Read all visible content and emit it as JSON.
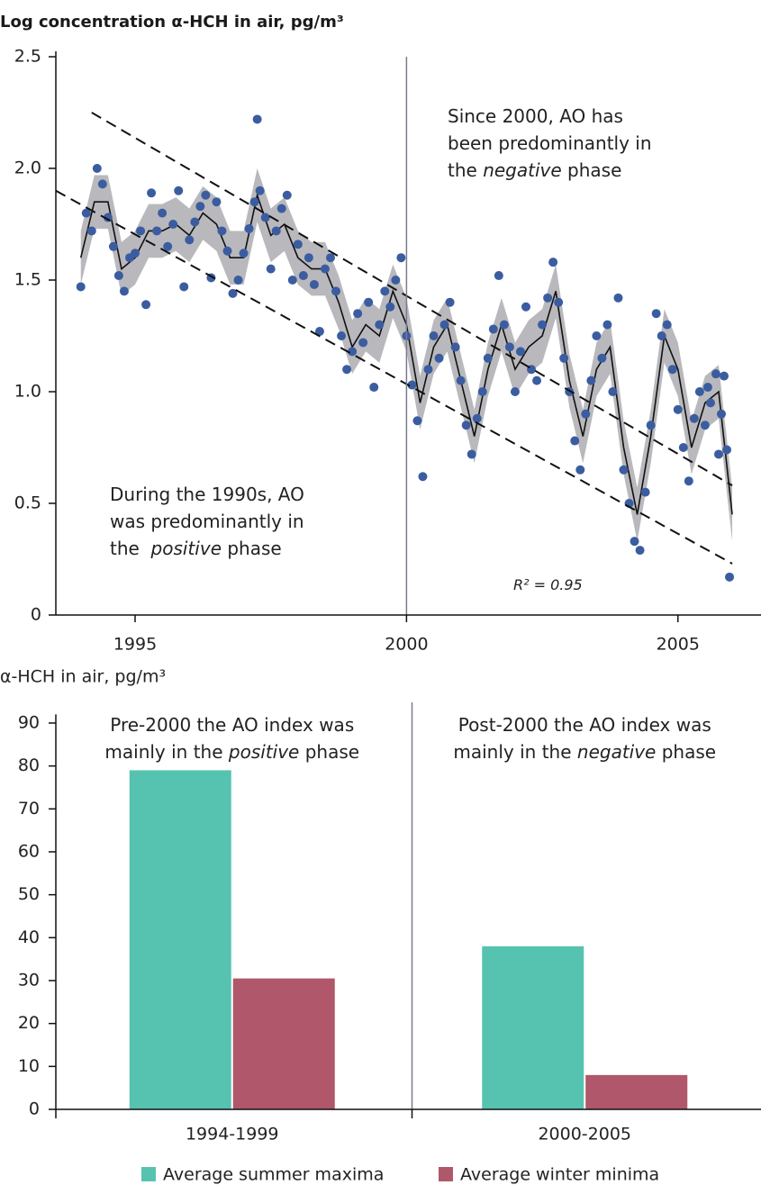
{
  "chart_data": [
    {
      "type": "scatter",
      "title": "Log concentration α-HCH in air, pg/m³",
      "xlim": [
        1993.54,
        2006.53
      ],
      "ylim": [
        0,
        2.5
      ],
      "xticks": [
        1995,
        2000,
        2005
      ],
      "yticks": [
        0,
        0.5,
        {
          "value": 1,
          "label": "1.0"
        },
        1.5,
        {
          "value": 2,
          "label": "2.0"
        },
        2.5
      ],
      "vline": 2000,
      "series": [
        {
          "type": "line",
          "color": "#111111",
          "band_color": "#b9b9bd",
          "x": [
            1994,
            1994.25,
            1994.5,
            1994.75,
            1995,
            1995.25,
            1995.5,
            1995.75,
            1996,
            1996.25,
            1996.5,
            1996.75,
            1997,
            1997.25,
            1997.5,
            1997.75,
            1998,
            1998.25,
            1998.5,
            1998.75,
            1999,
            1999.25,
            1999.5,
            1999.75,
            2000,
            2000.25,
            2000.5,
            2000.75,
            2001,
            2001.25,
            2001.5,
            2001.75,
            2002,
            2002.25,
            2002.5,
            2002.75,
            2003,
            2003.25,
            2003.5,
            2003.75,
            2004,
            2004.25,
            2004.5,
            2004.75,
            2005,
            2005.25,
            2005.5,
            2005.75,
            2006
          ],
          "values": [
            1.6,
            1.85,
            1.85,
            1.55,
            1.6,
            1.72,
            1.72,
            1.75,
            1.7,
            1.8,
            1.75,
            1.6,
            1.6,
            1.88,
            1.7,
            1.75,
            1.6,
            1.55,
            1.55,
            1.4,
            1.2,
            1.3,
            1.25,
            1.45,
            1.3,
            0.95,
            1.2,
            1.3,
            1.05,
            0.8,
            1.1,
            1.3,
            1.1,
            1.2,
            1.25,
            1.45,
            1.05,
            0.8,
            1.1,
            1.2,
            0.75,
            0.45,
            0.8,
            1.25,
            1.1,
            0.75,
            0.95,
            1.0,
            0.45
          ],
          "upper": [
            1.72,
            1.97,
            1.97,
            1.67,
            1.72,
            1.84,
            1.84,
            1.87,
            1.82,
            1.92,
            1.87,
            1.72,
            1.72,
            2.0,
            1.82,
            1.87,
            1.72,
            1.67,
            1.67,
            1.52,
            1.32,
            1.42,
            1.37,
            1.57,
            1.42,
            1.07,
            1.32,
            1.42,
            1.17,
            0.92,
            1.22,
            1.42,
            1.22,
            1.32,
            1.37,
            1.57,
            1.17,
            0.92,
            1.22,
            1.32,
            0.87,
            0.57,
            0.92,
            1.37,
            1.22,
            0.87,
            1.07,
            1.12,
            0.57
          ],
          "lower": [
            1.48,
            1.73,
            1.73,
            1.43,
            1.48,
            1.6,
            1.6,
            1.63,
            1.58,
            1.68,
            1.63,
            1.48,
            1.48,
            1.76,
            1.58,
            1.63,
            1.48,
            1.43,
            1.43,
            1.28,
            1.08,
            1.18,
            1.13,
            1.33,
            1.18,
            0.83,
            1.08,
            1.18,
            0.93,
            0.68,
            0.98,
            1.18,
            0.98,
            1.08,
            1.13,
            1.33,
            0.93,
            0.68,
            0.98,
            1.08,
            0.63,
            0.33,
            0.68,
            1.13,
            0.98,
            0.63,
            0.83,
            0.88,
            0.33
          ]
        },
        {
          "type": "scatter",
          "color": "#3b5da0",
          "x": [
            1994,
            1994.1,
            1994.2,
            1994.3,
            1994.4,
            1994.5,
            1994.6,
            1994.7,
            1994.8,
            1994.9,
            1995,
            1995.1,
            1995.2,
            1995.3,
            1995.4,
            1995.5,
            1995.6,
            1995.7,
            1995.8,
            1995.9,
            1996,
            1996.1,
            1996.2,
            1996.3,
            1996.4,
            1996.5,
            1996.6,
            1996.7,
            1996.8,
            1996.9,
            1997,
            1997.1,
            1997.2,
            1997.25,
            1997.3,
            1997.4,
            1997.5,
            1997.6,
            1997.7,
            1997.8,
            1997.9,
            1998,
            1998.1,
            1998.2,
            1998.3,
            1998.4,
            1998.5,
            1998.6,
            1998.7,
            1998.8,
            1998.9,
            1999,
            1999.1,
            1999.2,
            1999.3,
            1999.4,
            1999.5,
            1999.6,
            1999.7,
            1999.8,
            1999.9,
            2000,
            2000.1,
            2000.2,
            2000.3,
            2000.4,
            2000.5,
            2000.6,
            2000.7,
            2000.8,
            2000.9,
            2001,
            2001.1,
            2001.2,
            2001.3,
            2001.4,
            2001.5,
            2001.6,
            2001.7,
            2001.8,
            2001.9,
            2002,
            2002.1,
            2002.2,
            2002.3,
            2002.4,
            2002.5,
            2002.6,
            2002.7,
            2002.8,
            2002.9,
            2003,
            2003.1,
            2003.2,
            2003.3,
            2003.4,
            2003.5,
            2003.6,
            2003.7,
            2003.8,
            2003.9,
            2004,
            2004.1,
            2004.2,
            2004.3,
            2004.4,
            2004.5,
            2004.6,
            2004.7,
            2004.8,
            2004.9,
            2005,
            2005.1,
            2005.2,
            2005.3,
            2005.4,
            2005.5,
            2005.55,
            2005.6,
            2005.7,
            2005.75,
            2005.8,
            2005.85,
            2005.9,
            2005.95
          ],
          "values": [
            1.47,
            1.8,
            1.72,
            2.0,
            1.93,
            1.78,
            1.65,
            1.52,
            1.45,
            1.6,
            1.62,
            1.72,
            1.39,
            1.89,
            1.72,
            1.8,
            1.65,
            1.75,
            1.9,
            1.47,
            1.68,
            1.76,
            1.83,
            1.88,
            1.51,
            1.85,
            1.72,
            1.63,
            1.44,
            1.5,
            1.62,
            1.73,
            1.85,
            2.22,
            1.9,
            1.78,
            1.55,
            1.72,
            1.82,
            1.88,
            1.5,
            1.66,
            1.52,
            1.6,
            1.48,
            1.27,
            1.55,
            1.6,
            1.45,
            1.25,
            1.1,
            1.18,
            1.35,
            1.22,
            1.4,
            1.02,
            1.3,
            1.45,
            1.38,
            1.5,
            1.6,
            1.25,
            1.03,
            0.87,
            0.62,
            1.1,
            1.25,
            1.15,
            1.3,
            1.4,
            1.2,
            1.05,
            0.85,
            0.72,
            0.88,
            1.0,
            1.15,
            1.28,
            1.52,
            1.3,
            1.2,
            1.0,
            1.18,
            1.38,
            1.1,
            1.05,
            1.3,
            1.42,
            1.58,
            1.4,
            1.15,
            1.0,
            0.78,
            0.65,
            0.9,
            1.05,
            1.25,
            1.15,
            1.3,
            1.0,
            1.42,
            0.65,
            0.5,
            0.33,
            0.29,
            0.55,
            0.85,
            1.35,
            1.25,
            1.3,
            1.1,
            0.92,
            0.75,
            0.6,
            0.88,
            1.0,
            0.85,
            1.02,
            0.95,
            1.08,
            0.72,
            0.9,
            1.07,
            0.74,
            0.17
          ]
        }
      ],
      "trend_lines": [
        {
          "x": [
            1994.2,
            2006
          ],
          "y": [
            2.25,
            0.58
          ]
        },
        {
          "x": [
            1993.54,
            2006
          ],
          "y": [
            1.9,
            0.23
          ]
        }
      ],
      "annotations": [
        {
          "lines": [
            [
              "Since 2000, AO has"
            ],
            [
              "been predominantly in"
            ],
            [
              "the ",
              "negative",
              " phase"
            ]
          ],
          "italic": "negative"
        },
        {
          "lines": [
            [
              "During the 1990s, AO"
            ],
            [
              "was predominantly in"
            ],
            [
              "the  ",
              "positive",
              " phase"
            ]
          ],
          "italic": "positive"
        },
        {
          "lines": [
            [
              "R² = 0.95"
            ]
          ],
          "italic": "R² = 0.95"
        }
      ]
    },
    {
      "type": "bar",
      "title": "α-HCH in air, pg/m³",
      "categories": [
        "1994-1999",
        "2000-2005"
      ],
      "ylim": [
        0,
        92
      ],
      "yticks": [
        0,
        10,
        20,
        30,
        40,
        50,
        60,
        70,
        80,
        90
      ],
      "series": [
        {
          "name": "Average summer maxima",
          "color": "#56c3b0",
          "values": [
            79,
            38
          ]
        },
        {
          "name": "Average winter minima",
          "color": "#b0576b",
          "values": [
            30.5,
            8
          ]
        }
      ],
      "legend": "bottom",
      "annotation_color": "#f08a4b",
      "annotations": [
        {
          "lines": [
            [
              "Pre-2000 the AO index was"
            ],
            [
              "mainly in the ",
              "positive",
              " phase"
            ]
          ],
          "italic": "positive"
        },
        {
          "lines": [
            [
              "Post-2000 the AO index was"
            ],
            [
              "mainly in the ",
              "negative",
              " phase"
            ]
          ],
          "italic": "negative"
        }
      ]
    }
  ]
}
